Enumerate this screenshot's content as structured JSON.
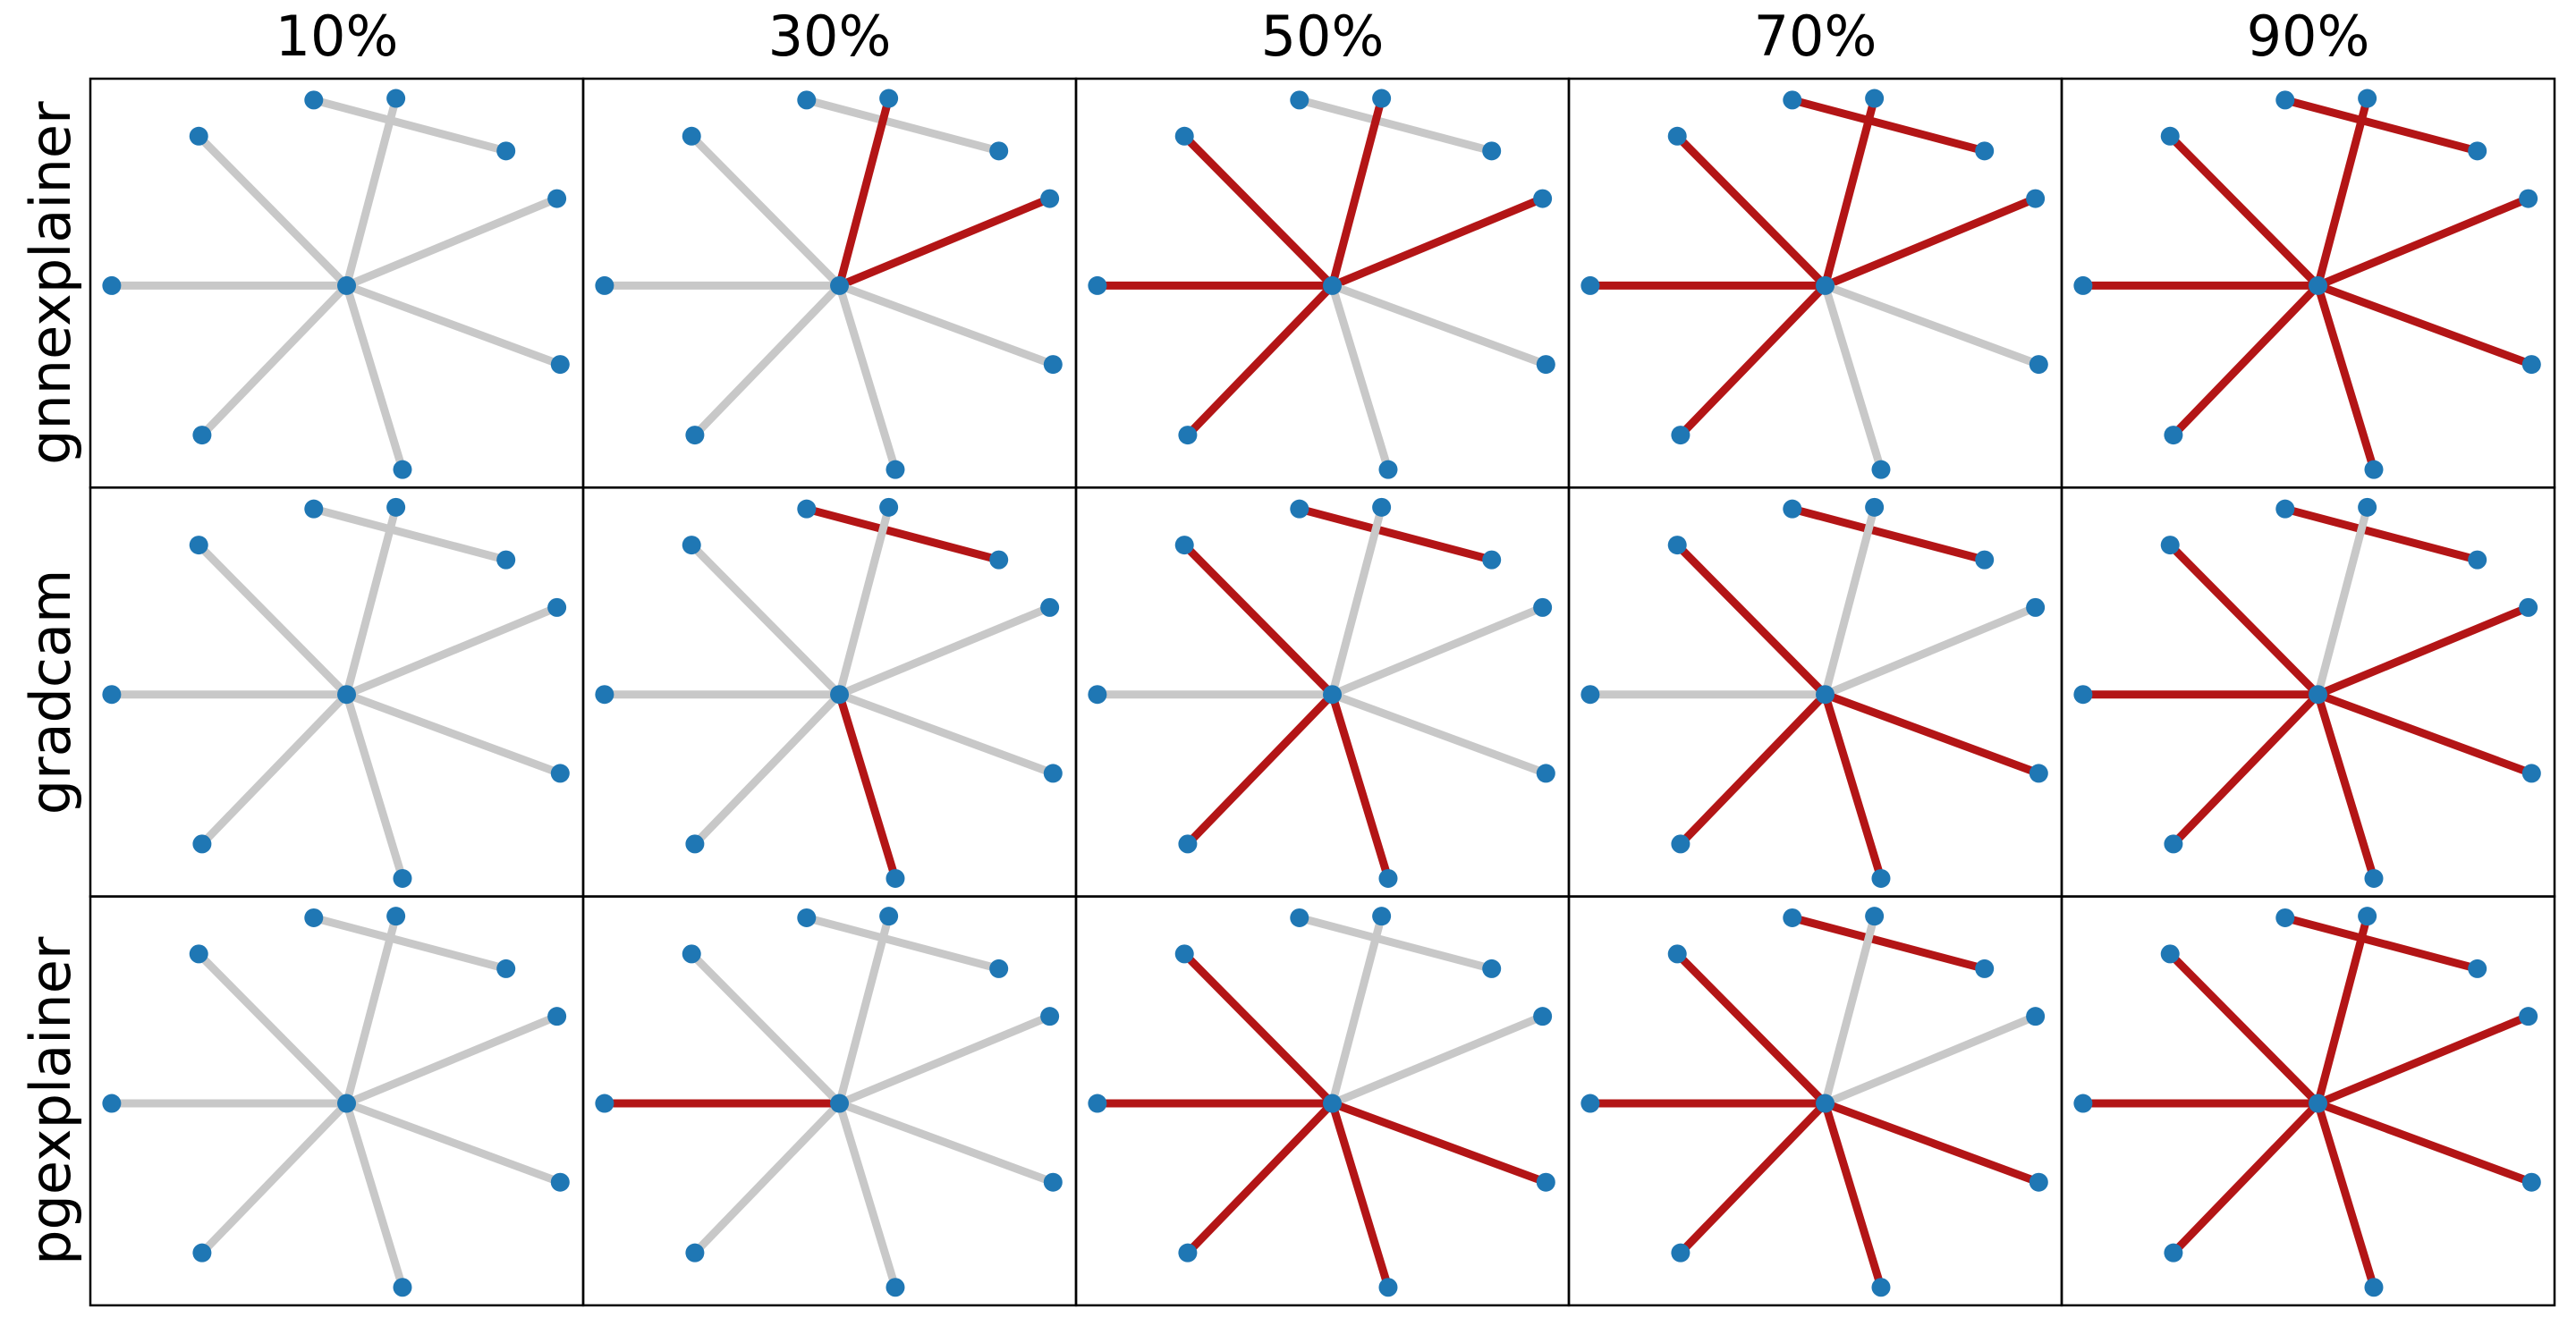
{
  "columns": [
    "10%",
    "30%",
    "50%",
    "70%",
    "90%"
  ],
  "rows": [
    {
      "label": "gnnexplainer",
      "panels": [
        {
          "highlighted": [
            false,
            false,
            false,
            false,
            false,
            false,
            false,
            false
          ]
        },
        {
          "highlighted": [
            false,
            true,
            true,
            false,
            false,
            false,
            false,
            false
          ]
        },
        {
          "highlighted": [
            false,
            true,
            true,
            false,
            false,
            true,
            true,
            true
          ]
        },
        {
          "highlighted": [
            true,
            true,
            true,
            false,
            false,
            true,
            true,
            true
          ]
        },
        {
          "highlighted": [
            true,
            true,
            true,
            true,
            true,
            true,
            true,
            true
          ]
        }
      ]
    },
    {
      "label": "gradcam",
      "panels": [
        {
          "highlighted": [
            false,
            false,
            false,
            false,
            false,
            false,
            false,
            false
          ]
        },
        {
          "highlighted": [
            true,
            false,
            false,
            false,
            true,
            false,
            false,
            false
          ]
        },
        {
          "highlighted": [
            true,
            false,
            false,
            false,
            true,
            true,
            false,
            true
          ]
        },
        {
          "highlighted": [
            true,
            false,
            false,
            true,
            true,
            true,
            false,
            true
          ]
        },
        {
          "highlighted": [
            true,
            false,
            true,
            true,
            true,
            true,
            true,
            true
          ]
        }
      ]
    },
    {
      "label": "pgexplainer",
      "panels": [
        {
          "highlighted": [
            false,
            false,
            false,
            false,
            false,
            false,
            false,
            false
          ]
        },
        {
          "highlighted": [
            false,
            false,
            false,
            false,
            false,
            false,
            true,
            false
          ]
        },
        {
          "highlighted": [
            false,
            false,
            false,
            true,
            true,
            true,
            true,
            true
          ]
        },
        {
          "highlighted": [
            true,
            false,
            false,
            true,
            true,
            true,
            true,
            true
          ]
        },
        {
          "highlighted": [
            true,
            true,
            true,
            true,
            true,
            true,
            true,
            true
          ]
        }
      ]
    }
  ]
}
